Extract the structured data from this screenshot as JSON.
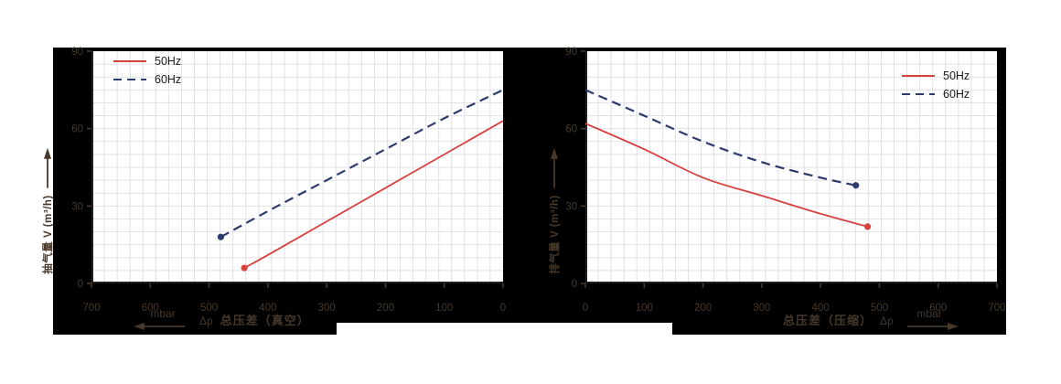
{
  "page": {
    "background": "#ffffff",
    "panel_color": "#000000",
    "plot_background": "#ffffff",
    "grid_color": "#e1e1e6",
    "axis_line_color": "#1f1f1f",
    "axis_text_color": "#46382b",
    "legend_text_color": "#1a1a1a"
  },
  "chart_data": [
    {
      "type": "line",
      "id": "vacuum-chart",
      "title": "",
      "xlabel_delta": "Δp",
      "xlabel": "总压差（真空）",
      "x_unit": "mbar",
      "x_arrow": "left",
      "ylabel": "抽气量 V (m³/h)",
      "x_direction": "reversed",
      "xlim": [
        0,
        700
      ],
      "ylim": [
        0,
        90
      ],
      "xticks": [
        "700",
        "600",
        "500",
        "400",
        "300",
        "200",
        "100",
        "0"
      ],
      "xtick_values": [
        700,
        600,
        500,
        400,
        300,
        200,
        100,
        0
      ],
      "yticks": [
        "90",
        "60",
        "30",
        "0"
      ],
      "ytick_values": [
        90,
        60,
        30,
        0
      ],
      "grid": true,
      "legend_position": "top-left",
      "series": [
        {
          "name": "50Hz",
          "color": "#d5423f",
          "dash": "solid",
          "points": [
            [
              440,
              6
            ],
            [
              400,
              11
            ],
            [
              300,
              24
            ],
            [
              200,
              37
            ],
            [
              100,
              50
            ],
            [
              0,
              63
            ]
          ],
          "dot": [
            440,
            6
          ]
        },
        {
          "name": "60Hz",
          "color": "#2e3b6e",
          "dash": "dashed",
          "points": [
            [
              480,
              18
            ],
            [
              400,
              28
            ],
            [
              300,
              40
            ],
            [
              200,
              52
            ],
            [
              100,
              64
            ],
            [
              0,
              75
            ]
          ],
          "dot": [
            480,
            18
          ]
        }
      ]
    },
    {
      "type": "line",
      "id": "pressure-chart",
      "title": "",
      "xlabel": "总压差（压缩）",
      "xlabel_delta": "Δp",
      "x_unit": "mbar",
      "x_arrow": "right",
      "ylabel": "排气量 V (m³/h)",
      "x_direction": "normal",
      "xlim": [
        0,
        700
      ],
      "ylim": [
        0,
        90
      ],
      "xticks": [
        "0",
        "100",
        "200",
        "300",
        "400",
        "500",
        "600",
        "700"
      ],
      "xtick_values": [
        0,
        100,
        200,
        300,
        400,
        500,
        600,
        700
      ],
      "yticks": [
        "90",
        "60",
        "30",
        "0"
      ],
      "ytick_values": [
        90,
        60,
        30,
        0
      ],
      "grid": true,
      "legend_position": "top-right",
      "series": [
        {
          "name": "50Hz",
          "color": "#d5423f",
          "dash": "solid",
          "points": [
            [
              0,
              62
            ],
            [
              100,
              52
            ],
            [
              200,
              41
            ],
            [
              300,
              34
            ],
            [
              400,
              27
            ],
            [
              480,
              22
            ]
          ],
          "dot": [
            480,
            22
          ]
        },
        {
          "name": "60Hz",
          "color": "#2e3b6e",
          "dash": "dashed",
          "points": [
            [
              0,
              75
            ],
            [
              100,
              65
            ],
            [
              200,
              55
            ],
            [
              300,
              47
            ],
            [
              400,
              41
            ],
            [
              460,
              38
            ]
          ],
          "dot": [
            460,
            38
          ]
        }
      ]
    }
  ]
}
